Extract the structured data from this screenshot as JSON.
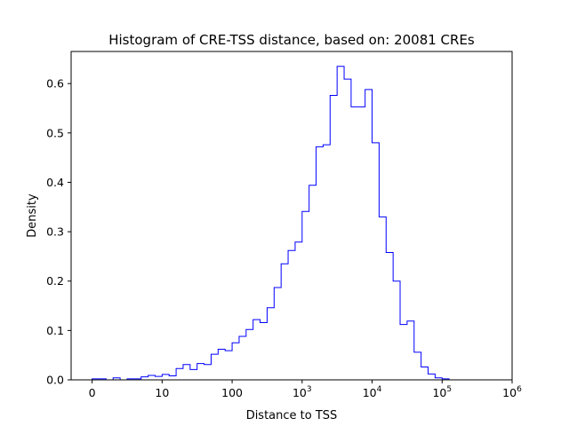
{
  "chart_data": {
    "type": "bar",
    "title": "Histogram of CRE-TSS distance, based on: 20081 CREs",
    "xlabel": "Distance to TSS",
    "ylabel": "Density",
    "x_scale": "log10(distance + 1)",
    "xlim": [
      -0.3,
      6.0
    ],
    "ylim": [
      0,
      0.665
    ],
    "x_ticks": [
      {
        "value": 0,
        "label": "0",
        "pow": ""
      },
      {
        "value": 1,
        "label": "10",
        "pow": ""
      },
      {
        "value": 2,
        "label": "100",
        "pow": ""
      },
      {
        "value": 3,
        "label": "10",
        "pow": "3"
      },
      {
        "value": 4,
        "label": "10",
        "pow": "4"
      },
      {
        "value": 5,
        "label": "10",
        "pow": "5"
      },
      {
        "value": 6,
        "label": "10",
        "pow": "6"
      }
    ],
    "y_ticks": [
      {
        "value": 0.0,
        "label": "0.0"
      },
      {
        "value": 0.1,
        "label": "0.1"
      },
      {
        "value": 0.2,
        "label": "0.2"
      },
      {
        "value": 0.3,
        "label": "0.3"
      },
      {
        "value": 0.4,
        "label": "0.4"
      },
      {
        "value": 0.5,
        "label": "0.5"
      },
      {
        "value": 0.6,
        "label": "0.6"
      }
    ],
    "histtype": "step",
    "grid": false,
    "bins": {
      "start": 0.0,
      "width": 0.1,
      "values": [
        0.002,
        0.002,
        0.0,
        0.004,
        0.0,
        0.002,
        0.002,
        0.006,
        0.009,
        0.007,
        0.011,
        0.008,
        0.023,
        0.031,
        0.021,
        0.033,
        0.031,
        0.052,
        0.062,
        0.059,
        0.075,
        0.088,
        0.102,
        0.122,
        0.116,
        0.146,
        0.187,
        0.235,
        0.262,
        0.279,
        0.341,
        0.394,
        0.472,
        0.476,
        0.576,
        0.635,
        0.609,
        0.553,
        0.553,
        0.588,
        0.48,
        0.33,
        0.258,
        0.2,
        0.112,
        0.119,
        0.056,
        0.026,
        0.012,
        0.004,
        0.002
      ]
    },
    "colors": {
      "series": "#0000ff",
      "axes": "#000000",
      "background": "#ffffff"
    }
  }
}
